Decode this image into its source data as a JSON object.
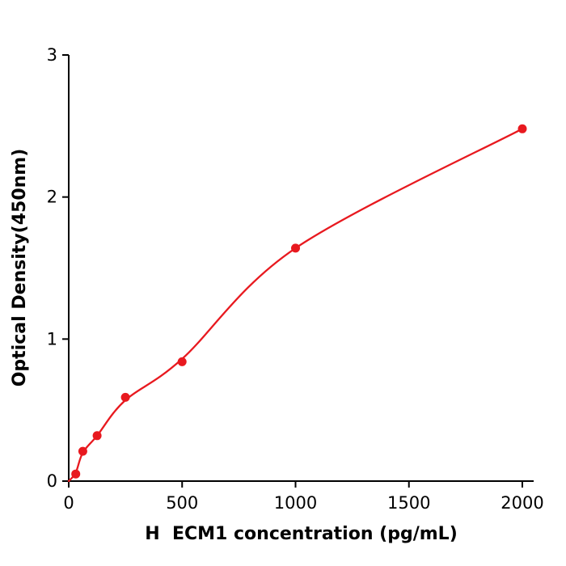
{
  "chart_data": {
    "type": "scatter",
    "title": "",
    "xlabel": "H  ECM1 concentration (pg/mL)",
    "ylabel": "Optical Density(450nm)",
    "x": [
      31,
      62,
      125,
      250,
      500,
      1000,
      2000
    ],
    "y": [
      0.05,
      0.21,
      0.32,
      0.59,
      0.84,
      1.64,
      2.48
    ],
    "curve_anchors": [
      [
        0,
        0.0
      ],
      [
        31,
        0.06
      ],
      [
        62,
        0.2
      ],
      [
        125,
        0.32
      ],
      [
        250,
        0.57
      ],
      [
        500,
        0.86
      ],
      [
        1000,
        1.64
      ],
      [
        2000,
        2.48
      ]
    ],
    "xlim": [
      0,
      2050
    ],
    "ylim": [
      0,
      3
    ],
    "xticks": [
      0,
      500,
      1000,
      1500,
      2000
    ],
    "yticks": [
      0,
      1,
      2,
      3
    ],
    "grid": false,
    "legend": null,
    "point_color": "#e8191f",
    "line_color": "#e8191f",
    "axis_color": "#000000",
    "background": "#ffffff"
  }
}
